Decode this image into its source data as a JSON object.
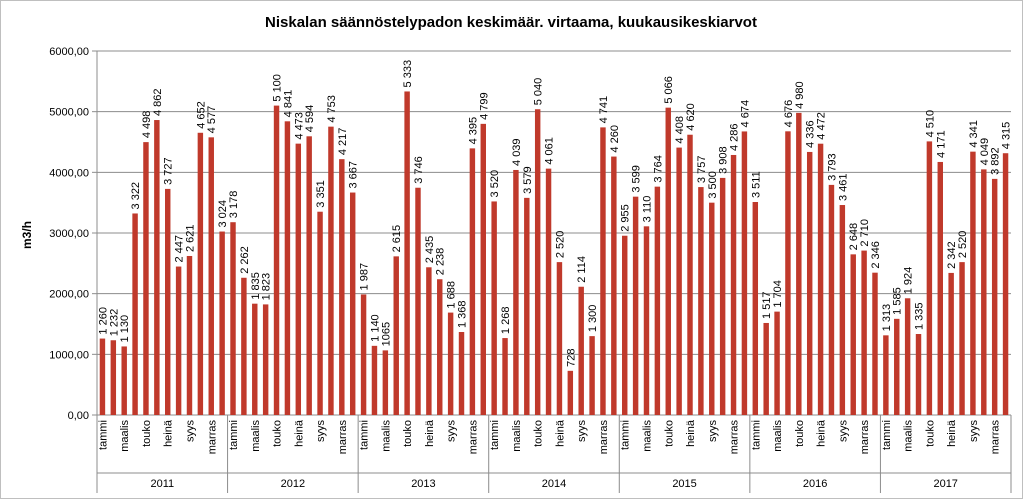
{
  "chart_data": {
    "type": "bar",
    "title": "Niskalan säännöstelypadon keskimäär. virtaama, kuukausikeskiarvot",
    "ylabel": "m3/h",
    "ylim": [
      0,
      6000
    ],
    "yticks": [
      "0,00",
      "1000,00",
      "2000,00",
      "3000,00",
      "4000,00",
      "5000,00",
      "6000,00"
    ],
    "grid": true,
    "bar_color": "#c0392b",
    "month_labels": [
      "tammi",
      "",
      "maalis",
      "",
      "touko",
      "",
      "heinä",
      "",
      "syys",
      "",
      "marras",
      ""
    ],
    "years": [
      {
        "year": "2011",
        "values": [
          1260,
          1232,
          1130,
          3322,
          4498,
          4862,
          3727,
          2447,
          2621,
          4652,
          4577,
          3024
        ],
        "labels": [
          "1 260",
          "1 232",
          "1 130",
          "3 322",
          "4 498",
          "4 862",
          "3 727",
          "2 447",
          "2 621",
          "4 652",
          "4 577",
          "3 024"
        ]
      },
      {
        "year": "2012",
        "values": [
          3178,
          2262,
          1835,
          1823,
          5100,
          4841,
          4473,
          4594,
          3351,
          4753,
          4217,
          3667
        ],
        "labels": [
          "3 178",
          "2 262",
          "1 835",
          "1 823",
          "5 100",
          "4 841",
          "4 473",
          "4 594",
          "3 351",
          "4 753",
          "4 217",
          "3 667"
        ]
      },
      {
        "year": "2013",
        "values": [
          1987,
          1140,
          1065,
          2615,
          5333,
          3746,
          2435,
          2238,
          1688,
          1368,
          4395,
          4799
        ],
        "labels": [
          "1 987",
          "1 140",
          "1065",
          "2 615",
          "5 333",
          "3 746",
          "2 435",
          "2 238",
          "1 688",
          "1 368",
          "4 395",
          "4 799"
        ]
      },
      {
        "year": "2014",
        "values": [
          3520,
          1268,
          4039,
          3579,
          5040,
          4061,
          2520,
          728,
          2114,
          1300,
          4741,
          4260
        ],
        "labels": [
          "3 520",
          "1 268",
          "4 039",
          "3 579",
          "5 040",
          "4 061",
          "2 520",
          "728",
          "2 114",
          "1 300",
          "4 741",
          "4 260"
        ]
      },
      {
        "year": "2015",
        "values": [
          2955,
          3599,
          3110,
          3764,
          5066,
          4408,
          4620,
          3757,
          3500,
          3908,
          4286,
          4674
        ],
        "labels": [
          "2 955",
          "3 599",
          "3 110",
          "3 764",
          "5 066",
          "4 408",
          "4 620",
          "3 757",
          "3 500",
          "3 908",
          "4 286",
          "4 674"
        ]
      },
      {
        "year": "2016",
        "values": [
          3511,
          1517,
          1704,
          4676,
          4980,
          4336,
          4472,
          3793,
          3461,
          2648,
          2710,
          2346
        ],
        "labels": [
          "3 511",
          "1 517",
          "1 704",
          "4 676",
          "4 980",
          "4 336",
          "4 472",
          "3 793",
          "3 461",
          "2 648",
          "2 710",
          "2 346"
        ]
      },
      {
        "year": "2017",
        "values": [
          1313,
          1585,
          1924,
          1335,
          4510,
          4171,
          2342,
          2520,
          4341,
          4049,
          3892,
          4315
        ],
        "labels": [
          "1 313",
          "1 585",
          "1 924",
          "1 335",
          "4 510",
          "4 171",
          "2 342",
          "2 520",
          "4 341",
          "4 049",
          "3 892",
          "4 315"
        ]
      }
    ]
  }
}
